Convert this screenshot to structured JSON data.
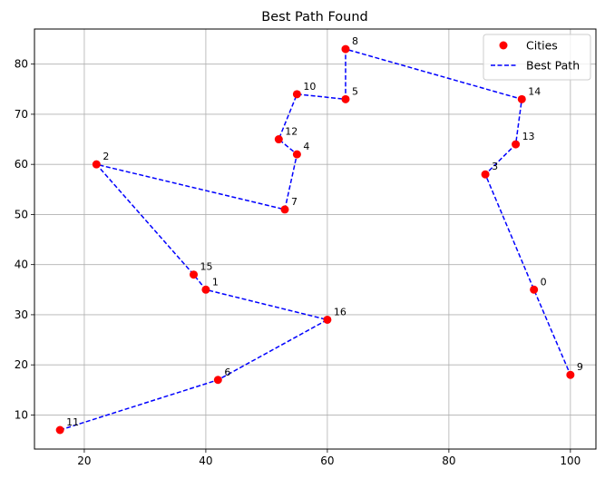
{
  "chart_data": {
    "type": "scatter",
    "title": "Best Path Found",
    "xlabel": "",
    "ylabel": "",
    "xlim": [
      11.8,
      104.2
    ],
    "ylim": [
      3.2,
      87.0
    ],
    "xticks": [
      20,
      40,
      60,
      80,
      100
    ],
    "yticks": [
      10,
      20,
      30,
      40,
      50,
      60,
      70,
      80
    ],
    "grid": true,
    "legend_position": "top-right",
    "colors": {
      "cities": "#ff0000",
      "path": "#0000ff",
      "grid": "#b0b0b0"
    },
    "cities": [
      {
        "id": "0",
        "x": 94,
        "y": 35
      },
      {
        "id": "1",
        "x": 40,
        "y": 35
      },
      {
        "id": "2",
        "x": 22,
        "y": 60
      },
      {
        "id": "3",
        "x": 86,
        "y": 58
      },
      {
        "id": "4",
        "x": 55,
        "y": 62
      },
      {
        "id": "5",
        "x": 63,
        "y": 73
      },
      {
        "id": "6",
        "x": 42,
        "y": 17
      },
      {
        "id": "7",
        "x": 53,
        "y": 51
      },
      {
        "id": "8",
        "x": 63,
        "y": 83
      },
      {
        "id": "9",
        "x": 100,
        "y": 18
      },
      {
        "id": "10",
        "x": 55,
        "y": 74
      },
      {
        "id": "11",
        "x": 16,
        "y": 7
      },
      {
        "id": "12",
        "x": 52,
        "y": 65
      },
      {
        "id": "13",
        "x": 91,
        "y": 64
      },
      {
        "id": "14",
        "x": 92,
        "y": 73
      },
      {
        "id": "15",
        "x": 38,
        "y": 38
      },
      {
        "id": "16",
        "x": 60,
        "y": 29
      }
    ],
    "path_order": [
      "11",
      "6",
      "16",
      "1",
      "15",
      "2",
      "7",
      "4",
      "12",
      "10",
      "5",
      "8",
      "14",
      "13",
      "3",
      "0",
      "9"
    ],
    "series": [
      {
        "name": "Cities"
      },
      {
        "name": "Best Path"
      }
    ]
  }
}
